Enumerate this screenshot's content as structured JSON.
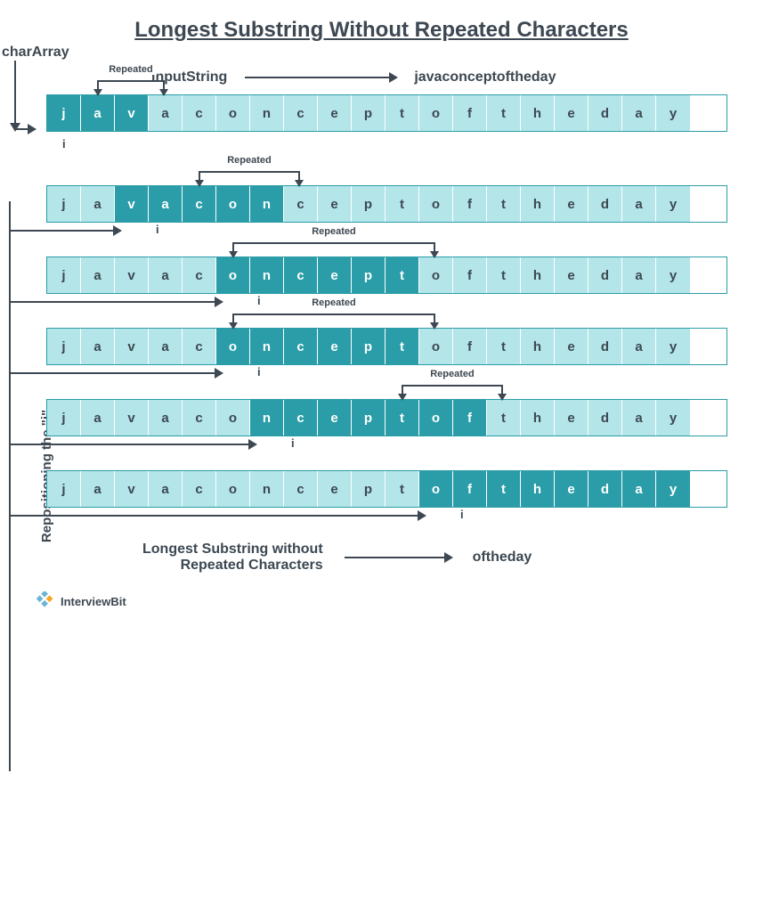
{
  "title": "Longest Substring Without Repeated Characters",
  "header": {
    "inputLabel": "inputString",
    "inputValue": "javaconceptoftheday",
    "charArrayLabel": "charArray"
  },
  "colors": {
    "cellLight": "#b3e5e9",
    "cellDark": "#2a9da8",
    "textDark": "#3d4852",
    "textLight": "#ffffff",
    "background": "#ffffff"
  },
  "cellWidth": 38,
  "chars": [
    "j",
    "a",
    "v",
    "a",
    "c",
    "o",
    "n",
    "c",
    "e",
    "p",
    "t",
    "o",
    "f",
    "t",
    "h",
    "e",
    "d",
    "a",
    "y"
  ],
  "rows": [
    {
      "highlightStart": 0,
      "highlightEnd": 2,
      "repeated": {
        "fromIdx": 1,
        "toIdx": 3,
        "label": "Repeated"
      },
      "iPos": null,
      "iLabel": "i",
      "iTopOffset": 55
    },
    {
      "highlightStart": 2,
      "highlightEnd": 6,
      "repeated": {
        "fromIdx": 4,
        "toIdx": 7,
        "label": "Repeated"
      },
      "iPos": 2,
      "iLabel": "i"
    },
    {
      "highlightStart": 5,
      "highlightEnd": 10,
      "repeated": {
        "fromIdx": 5,
        "toIdx": 11,
        "label": "Repeated"
      },
      "iPos": 5,
      "iLabel": "i"
    },
    {
      "highlightStart": 5,
      "highlightEnd": 10,
      "repeated": {
        "fromIdx": 5,
        "toIdx": 11,
        "label": "Repeated"
      },
      "iPos": 5,
      "iLabel": "i"
    },
    {
      "highlightStart": 6,
      "highlightEnd": 12,
      "repeated": {
        "fromIdx": 10,
        "toIdx": 13,
        "label": "Repeated"
      },
      "iPos": 6,
      "iLabel": "i"
    },
    {
      "highlightStart": 11,
      "highlightEnd": 18,
      "repeated": null,
      "iPos": 11,
      "iLabel": "i"
    }
  ],
  "sideLabel": "Repositioning the \"i\"",
  "result": {
    "label": "Longest Substring without\nRepeated Characters",
    "value": "oftheday"
  },
  "footer": {
    "brand": "InterviewBit"
  }
}
